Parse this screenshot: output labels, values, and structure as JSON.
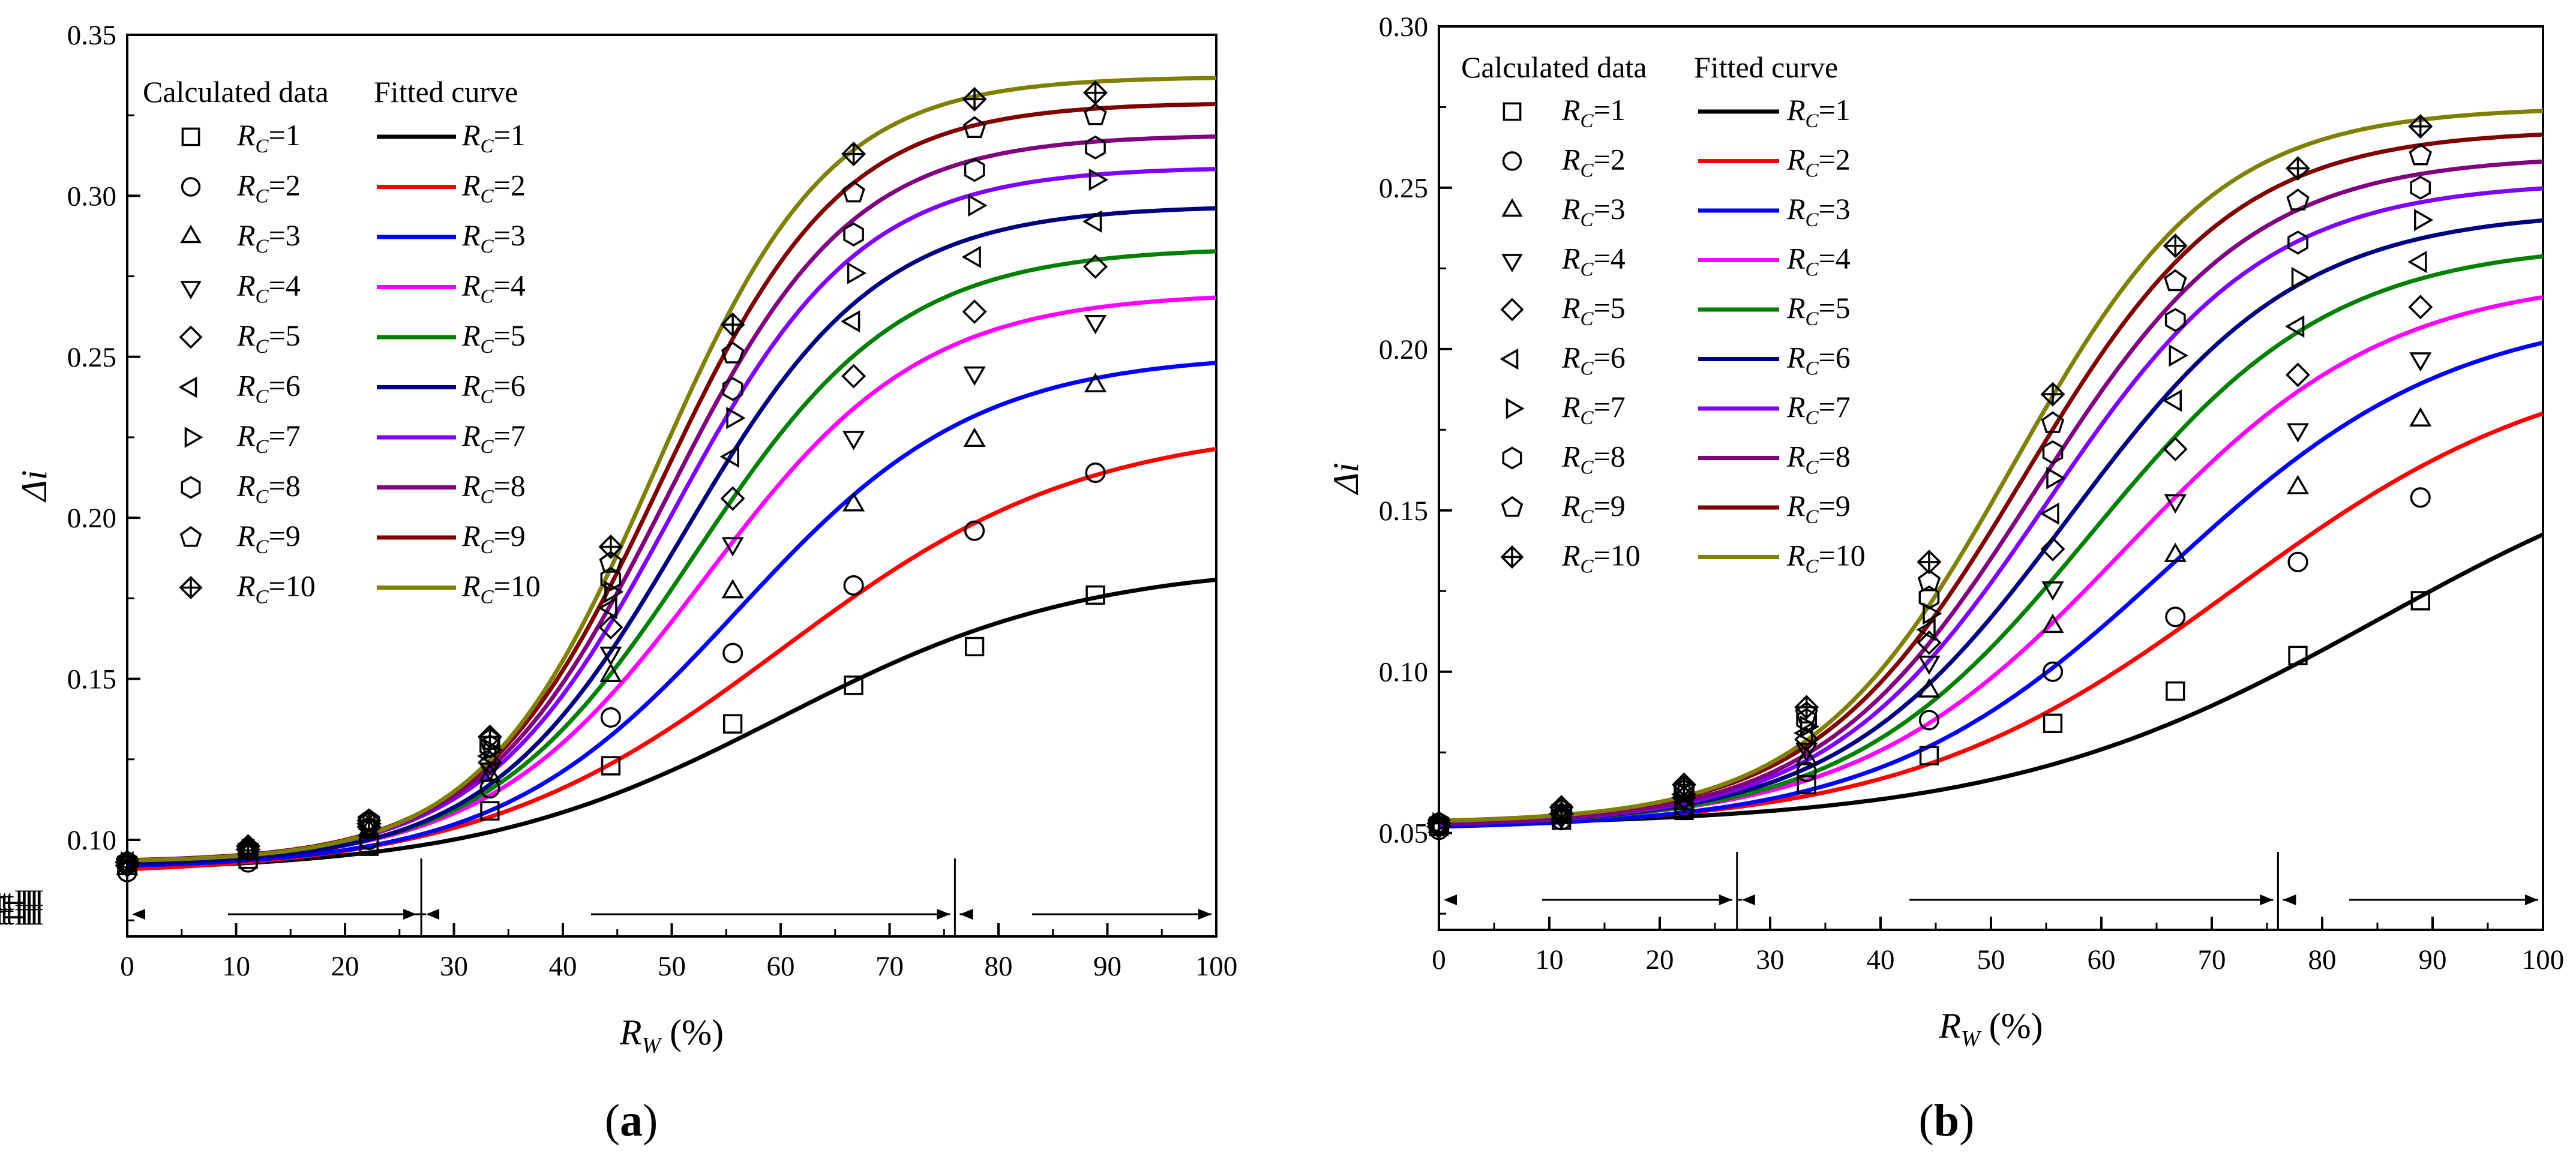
{
  "figure": {
    "legend_headers": {
      "calculated": "Calculated data",
      "fitted": "Fitted curve"
    },
    "part_labels": [
      "Part-I",
      "Part-II",
      "Part-III"
    ]
  },
  "chart_data": [
    {
      "type": "line",
      "panel_label": "(a)",
      "xlabel_main": "R",
      "xlabel_sub": "W",
      "xlabel_unit": " (%)",
      "ylabel": "Δi",
      "xlim": [
        0,
        100
      ],
      "ylim": [
        0.07,
        0.35
      ],
      "xticks": [
        0,
        10,
        20,
        30,
        40,
        50,
        60,
        70,
        80,
        90,
        100
      ],
      "yticks": [
        0.1,
        0.15,
        0.2,
        0.25,
        0.3,
        0.35
      ],
      "ytick_labels": [
        "0.10",
        "0.15",
        "0.20",
        "0.25",
        "0.30",
        "0.35"
      ],
      "part_boundaries": [
        27,
        76
      ],
      "x_calculated": [
        0,
        11.1,
        22.2,
        33.3,
        44.4,
        55.6,
        66.7,
        77.8,
        88.9
      ],
      "series": [
        {
          "name": "RC=1",
          "rc": "1",
          "color": "#000000",
          "marker": "square",
          "fit": [
            0.09,
            0.186,
            60,
            14
          ],
          "points": [
            0.092,
            0.094,
            0.098,
            0.109,
            0.123,
            0.136,
            0.148,
            0.16,
            0.176
          ]
        },
        {
          "name": "RC=2",
          "rc": "2",
          "color": "#ff0000",
          "marker": "circle",
          "fit": [
            0.089,
            0.229,
            60,
            14
          ],
          "points": [
            0.09,
            0.093,
            0.1,
            0.116,
            0.138,
            0.158,
            0.179,
            0.196,
            0.214
          ]
        },
        {
          "name": "RC=3",
          "rc": "3",
          "color": "#0000ff",
          "marker": "triangle-up",
          "fit": [
            0.091,
            0.251,
            56,
            11
          ],
          "points": [
            0.091,
            0.096,
            0.103,
            0.12,
            0.151,
            0.177,
            0.204,
            0.224,
            0.241
          ]
        },
        {
          "name": "RC=4",
          "rc": "4",
          "color": "#ff00ff",
          "marker": "triangle-down",
          "fit": [
            0.092,
            0.27,
            53,
            10
          ],
          "points": [
            0.092,
            0.097,
            0.104,
            0.122,
            0.158,
            0.192,
            0.225,
            0.245,
            0.261
          ]
        },
        {
          "name": "RC=5",
          "rc": "5",
          "color": "#008000",
          "marker": "diamond",
          "fit": [
            0.092,
            0.284,
            52,
            9.5
          ],
          "points": [
            0.092,
            0.097,
            0.104,
            0.124,
            0.166,
            0.206,
            0.244,
            0.264,
            0.278
          ]
        },
        {
          "name": "RC=6",
          "rc": "6",
          "color": "#000080",
          "marker": "triangle-left",
          "fit": [
            0.092,
            0.297,
            51,
            9
          ],
          "points": [
            0.093,
            0.097,
            0.105,
            0.126,
            0.172,
            0.219,
            0.261,
            0.281,
            0.292
          ]
        },
        {
          "name": "RC=7",
          "rc": "7",
          "color": "#8000ff",
          "marker": "triangle-right",
          "fit": [
            0.093,
            0.309,
            50,
            8.7
          ],
          "points": [
            0.093,
            0.097,
            0.105,
            0.128,
            0.177,
            0.231,
            0.276,
            0.297,
            0.305
          ]
        },
        {
          "name": "RC=8",
          "rc": "8",
          "color": "#800080",
          "marker": "hexagon",
          "fit": [
            0.093,
            0.319,
            49.5,
            8.5
          ],
          "points": [
            0.093,
            0.097,
            0.105,
            0.129,
            0.181,
            0.24,
            0.288,
            0.308,
            0.315
          ]
        },
        {
          "name": "RC=9",
          "rc": "9",
          "color": "#800000",
          "marker": "pentagon",
          "fit": [
            0.093,
            0.329,
            49,
            8.3
          ],
          "points": [
            0.093,
            0.097,
            0.106,
            0.131,
            0.186,
            0.251,
            0.301,
            0.321,
            0.325
          ]
        },
        {
          "name": "RC=10",
          "rc": "10",
          "color": "#808000",
          "marker": "crossed-diamond",
          "fit": [
            0.093,
            0.337,
            48.5,
            8
          ],
          "points": [
            0.093,
            0.098,
            0.106,
            0.132,
            0.191,
            0.26,
            0.313,
            0.33,
            0.332
          ]
        }
      ]
    },
    {
      "type": "line",
      "panel_label": "(b)",
      "xlabel_main": "R",
      "xlabel_sub": "W",
      "xlabel_unit": " (%)",
      "ylabel": "Δi",
      "xlim": [
        0,
        100
      ],
      "ylim": [
        0.02,
        0.3
      ],
      "xticks": [
        0,
        10,
        20,
        30,
        40,
        50,
        60,
        70,
        80,
        90,
        100
      ],
      "yticks": [
        0.05,
        0.1,
        0.15,
        0.2,
        0.25,
        0.3
      ],
      "ytick_labels": [
        "0.05",
        "0.10",
        "0.15",
        "0.20",
        "0.25",
        "0.30"
      ],
      "part_boundaries": [
        27,
        76
      ],
      "x_calculated": [
        0,
        11.1,
        22.2,
        33.3,
        44.4,
        55.6,
        66.7,
        77.8,
        88.9
      ],
      "series": [
        {
          "name": "RC=1",
          "rc": "1",
          "color": "#000000",
          "marker": "square",
          "fit": [
            0.052,
            0.18,
            85,
            17
          ],
          "points": [
            0.052,
            0.054,
            0.057,
            0.065,
            0.074,
            0.084,
            0.094,
            0.105,
            0.122
          ]
        },
        {
          "name": "RC=2",
          "rc": "2",
          "color": "#ff0000",
          "marker": "circle",
          "fit": [
            0.051,
            0.2,
            72,
            15
          ],
          "points": [
            0.051,
            0.054,
            0.058,
            0.069,
            0.085,
            0.1,
            0.117,
            0.134,
            0.154
          ]
        },
        {
          "name": "RC=3",
          "rc": "3",
          "color": "#0000ff",
          "marker": "triangle-up",
          "fit": [
            0.051,
            0.213,
            66,
            13
          ],
          "points": [
            0.052,
            0.055,
            0.059,
            0.073,
            0.094,
            0.114,
            0.136,
            0.157,
            0.178
          ]
        },
        {
          "name": "RC=4",
          "rc": "4",
          "color": "#ff00ff",
          "marker": "triangle-down",
          "fit": [
            0.052,
            0.223,
            62,
            12
          ],
          "points": [
            0.052,
            0.055,
            0.06,
            0.076,
            0.103,
            0.126,
            0.153,
            0.175,
            0.197
          ]
        },
        {
          "name": "RC=5",
          "rc": "5",
          "color": "#008000",
          "marker": "diamond",
          "fit": [
            0.052,
            0.233,
            59,
            11
          ],
          "points": [
            0.052,
            0.056,
            0.061,
            0.079,
            0.109,
            0.138,
            0.169,
            0.192,
            0.213
          ]
        },
        {
          "name": "RC=6",
          "rc": "6",
          "color": "#000080",
          "marker": "triangle-left",
          "fit": [
            0.052,
            0.243,
            57,
            10.5
          ],
          "points": [
            0.052,
            0.056,
            0.062,
            0.081,
            0.113,
            0.149,
            0.184,
            0.207,
            0.227
          ]
        },
        {
          "name": "RC=7",
          "rc": "7",
          "color": "#8000ff",
          "marker": "triangle-right",
          "fit": [
            0.052,
            0.252,
            55,
            10
          ],
          "points": [
            0.053,
            0.056,
            0.062,
            0.083,
            0.118,
            0.16,
            0.198,
            0.222,
            0.24
          ]
        },
        {
          "name": "RC=8",
          "rc": "8",
          "color": "#800080",
          "marker": "hexagon",
          "fit": [
            0.052,
            0.26,
            54,
            9.8
          ],
          "points": [
            0.053,
            0.057,
            0.063,
            0.085,
            0.123,
            0.168,
            0.209,
            0.233,
            0.25
          ]
        },
        {
          "name": "RC=9",
          "rc": "9",
          "color": "#800000",
          "marker": "pentagon",
          "fit": [
            0.053,
            0.268,
            53,
            9.5
          ],
          "points": [
            0.053,
            0.057,
            0.064,
            0.087,
            0.128,
            0.177,
            0.221,
            0.246,
            0.26
          ]
        },
        {
          "name": "RC=10",
          "rc": "10",
          "color": "#808000",
          "marker": "crossed-diamond",
          "fit": [
            0.053,
            0.275,
            52,
            9.2
          ],
          "points": [
            0.053,
            0.058,
            0.065,
            0.089,
            0.134,
            0.186,
            0.232,
            0.256,
            0.269
          ]
        }
      ]
    }
  ]
}
